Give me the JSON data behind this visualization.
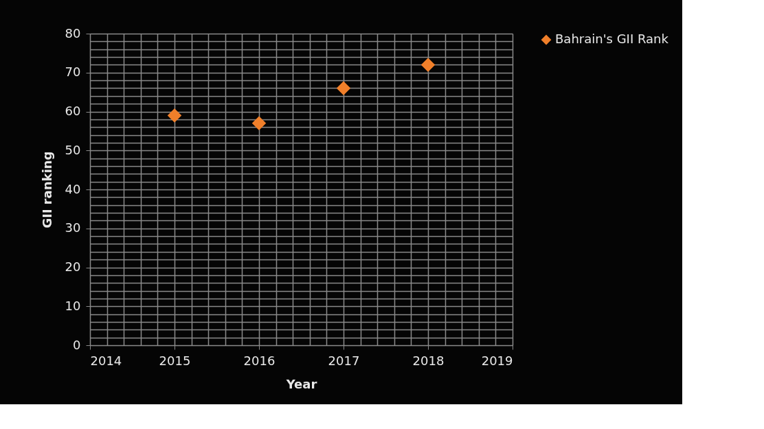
{
  "chart_data": {
    "type": "scatter",
    "xlabel": "Year",
    "ylabel": "GII ranking",
    "x": [
      2015,
      2016,
      2017,
      2018
    ],
    "series": [
      {
        "name": "Bahrain's GII Rank",
        "color": "#f07f2a",
        "values": [
          59,
          57,
          66,
          72
        ]
      }
    ],
    "xlim": [
      2014,
      2019
    ],
    "xticks": [
      2014,
      2015,
      2016,
      2017,
      2018,
      2019
    ],
    "ylim": [
      0,
      80
    ],
    "yticks": [
      0,
      10,
      20,
      30,
      40,
      50,
      60,
      70,
      80
    ],
    "grid": true,
    "legend": "right",
    "marker": "diamond"
  }
}
